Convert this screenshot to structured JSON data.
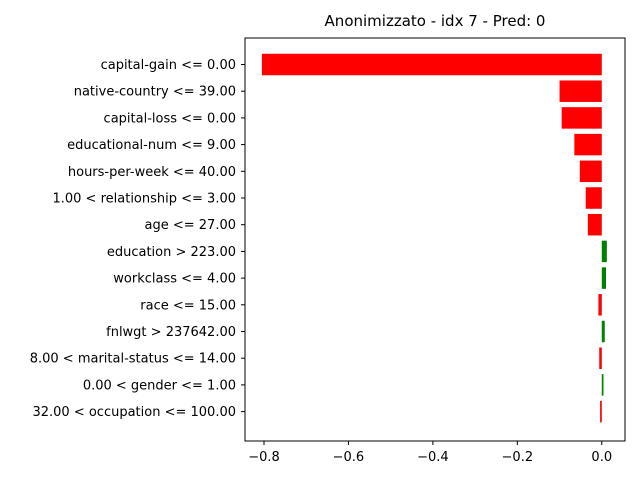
{
  "chart_data": {
    "type": "bar",
    "orientation": "horizontal",
    "title": "Anonimizzato - idx 7 - Pred: 0",
    "xlabel": "",
    "ylabel": "",
    "xlim": [
      -0.845,
      0.055
    ],
    "xticks": [
      -0.8,
      -0.6,
      -0.4,
      -0.2,
      0.0
    ],
    "xtick_labels": [
      "−0.8",
      "−0.6",
      "−0.4",
      "−0.2",
      "0.0"
    ],
    "grid": false,
    "colors": {
      "negative": "#ff0000",
      "positive": "#008000"
    },
    "categories": [
      "capital-gain <= 0.00",
      "native-country <= 39.00",
      "capital-loss <= 0.00",
      "educational-num <= 9.00",
      "hours-per-week <= 40.00",
      "1.00 < relationship <= 3.00",
      "age <= 27.00",
      "education > 223.00",
      "workclass <= 4.00",
      "race <= 15.00",
      "fnlwgt > 237642.00",
      "8.00 < marital-status <= 14.00",
      "0.00 < gender <= 1.00",
      "32.00 < occupation <= 100.00"
    ],
    "values": [
      -0.805,
      -0.1,
      -0.095,
      -0.065,
      -0.052,
      -0.038,
      -0.033,
      0.012,
      0.01,
      -0.008,
      0.007,
      -0.006,
      0.004,
      -0.004
    ]
  }
}
